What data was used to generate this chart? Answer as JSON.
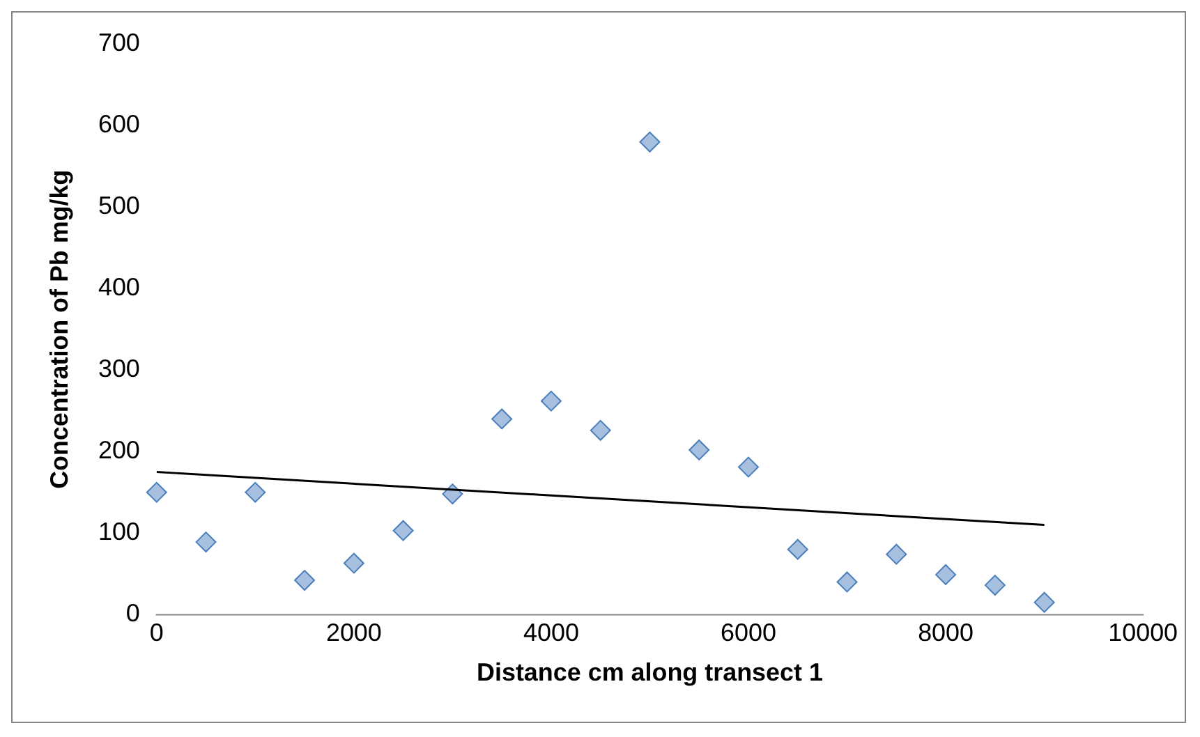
{
  "chart_data": {
    "type": "scatter",
    "xlabel": "Distance cm along transect 1",
    "ylabel": "Concentration of Pb mg/kg",
    "xlim": [
      0,
      10000
    ],
    "xticks": [
      0,
      2000,
      4000,
      6000,
      8000,
      10000
    ],
    "ylim": [
      0,
      700
    ],
    "yticks": [
      0,
      100,
      200,
      300,
      400,
      500,
      600,
      700
    ],
    "grid": false,
    "legend": false,
    "series": [
      {
        "marker": "diamond",
        "color": "#a7c0e0",
        "x": [
          0,
          500,
          1000,
          1500,
          2000,
          2500,
          3000,
          3500,
          4000,
          4500,
          5000,
          5500,
          6000,
          6500,
          7000,
          7500,
          8000,
          8500,
          9000
        ],
        "values": [
          150,
          89,
          150,
          42,
          63,
          103,
          148,
          240,
          262,
          226,
          580,
          202,
          181,
          80,
          40,
          74,
          49,
          36,
          15
        ]
      },
      {
        "type": "line",
        "marker": "none",
        "color": "#000000",
        "x": [
          0,
          9000
        ],
        "values": [
          175,
          110
        ]
      }
    ]
  }
}
